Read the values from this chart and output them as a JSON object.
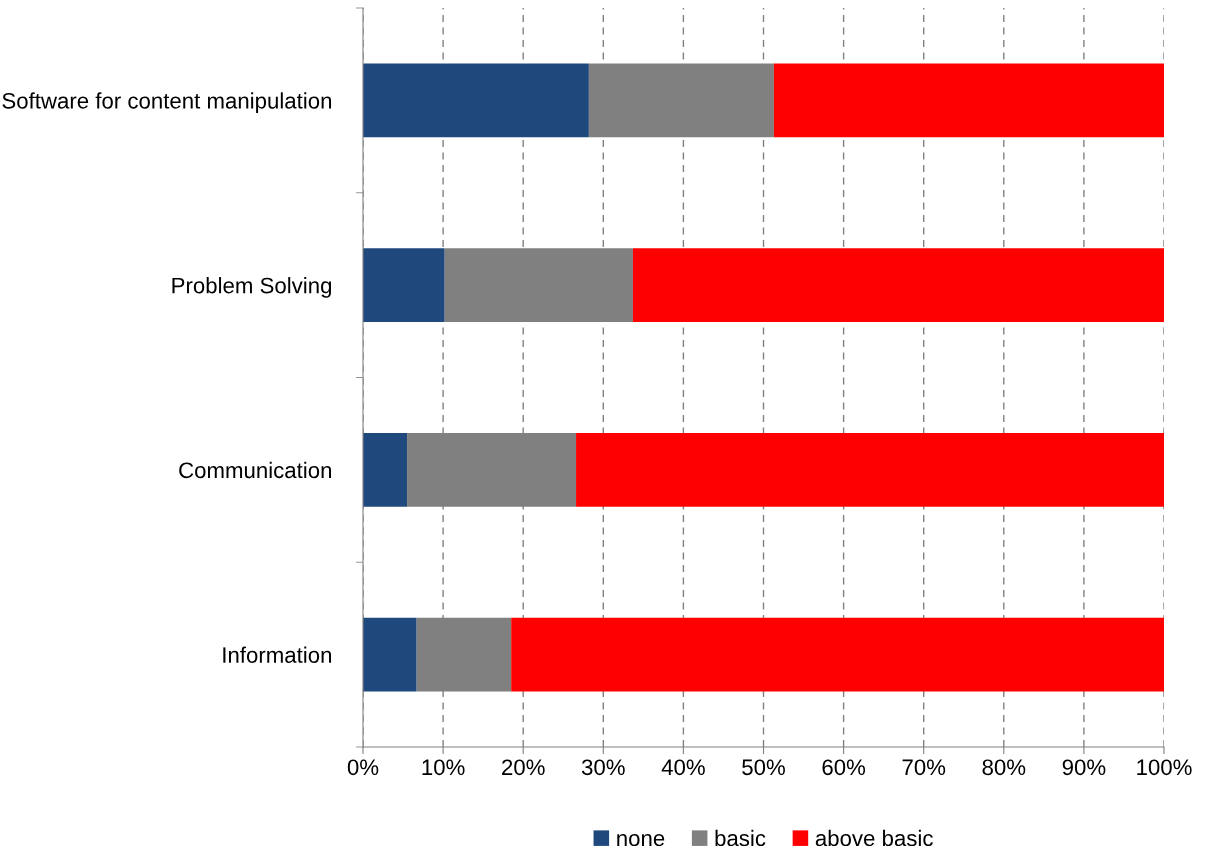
{
  "chart_data": {
    "type": "bar",
    "orientation": "horizontal",
    "stacked": true,
    "categories": [
      "Software for content manipulation",
      "Problem Solving",
      "Communication",
      "Information"
    ],
    "series": [
      {
        "name": "none",
        "color": "#1f497d",
        "values": [
          28.2,
          10.2,
          5.5,
          6.7
        ]
      },
      {
        "name": "basic",
        "color": "#808080",
        "values": [
          23.1,
          23.5,
          21.1,
          11.8
        ]
      },
      {
        "name": "above basic",
        "color": "#ff0000",
        "values": [
          48.7,
          66.3,
          73.4,
          81.5
        ]
      }
    ],
    "xlim": [
      0,
      100
    ],
    "xticks": [
      {
        "value": 0,
        "label": "0%"
      },
      {
        "value": 10,
        "label": "10%"
      },
      {
        "value": 20,
        "label": "20%"
      },
      {
        "value": 30,
        "label": "30%"
      },
      {
        "value": 40,
        "label": "40%"
      },
      {
        "value": 50,
        "label": "50%"
      },
      {
        "value": 60,
        "label": "60%"
      },
      {
        "value": 70,
        "label": "70%"
      },
      {
        "value": 80,
        "label": "80%"
      },
      {
        "value": 90,
        "label": "90%"
      },
      {
        "value": 100,
        "label": "100%"
      }
    ],
    "grid": "x",
    "line_style": "dashed",
    "legend": "bottom"
  }
}
